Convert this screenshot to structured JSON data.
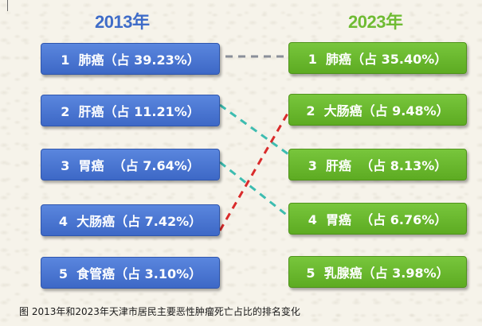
{
  "titles": {
    "left": "2013年",
    "right": "2023年"
  },
  "rank_2013": [
    {
      "label": "1  肺癌（占 39.23%）"
    },
    {
      "label": "2  肝癌（占 11.21%）"
    },
    {
      "label": "3  胃癌  （占 7.64%）"
    },
    {
      "label": "4  大肠癌（占 7.42%）"
    },
    {
      "label": "5  食管癌（占 3.10%）"
    }
  ],
  "rank_2023": [
    {
      "label": "1  肺癌（占 35.40%）"
    },
    {
      "label": "2  大肠癌（占 9.48%）"
    },
    {
      "label": "3  肝癌  （占 8.13%）"
    },
    {
      "label": "4  胃癌  （占 6.76%）"
    },
    {
      "label": "5  乳腺癌（占 3.98%）"
    }
  ],
  "links": [
    {
      "from": 1,
      "to": 1,
      "color": "#8a8f99",
      "style": "dash"
    },
    {
      "from": 2,
      "to": 3,
      "color": "#3dbcb0",
      "style": "dash"
    },
    {
      "from": 3,
      "to": 4,
      "color": "#3dbcb0",
      "style": "dash"
    },
    {
      "from": 4,
      "to": 2,
      "color": "#d92b2b",
      "style": "dash"
    }
  ],
  "colors": {
    "blue_box": "#4a76d4",
    "green_box": "#6bb92f"
  },
  "caption": "图  2013年和2023年天津市居民主要恶性肿瘤死亡占比的排名变化"
}
